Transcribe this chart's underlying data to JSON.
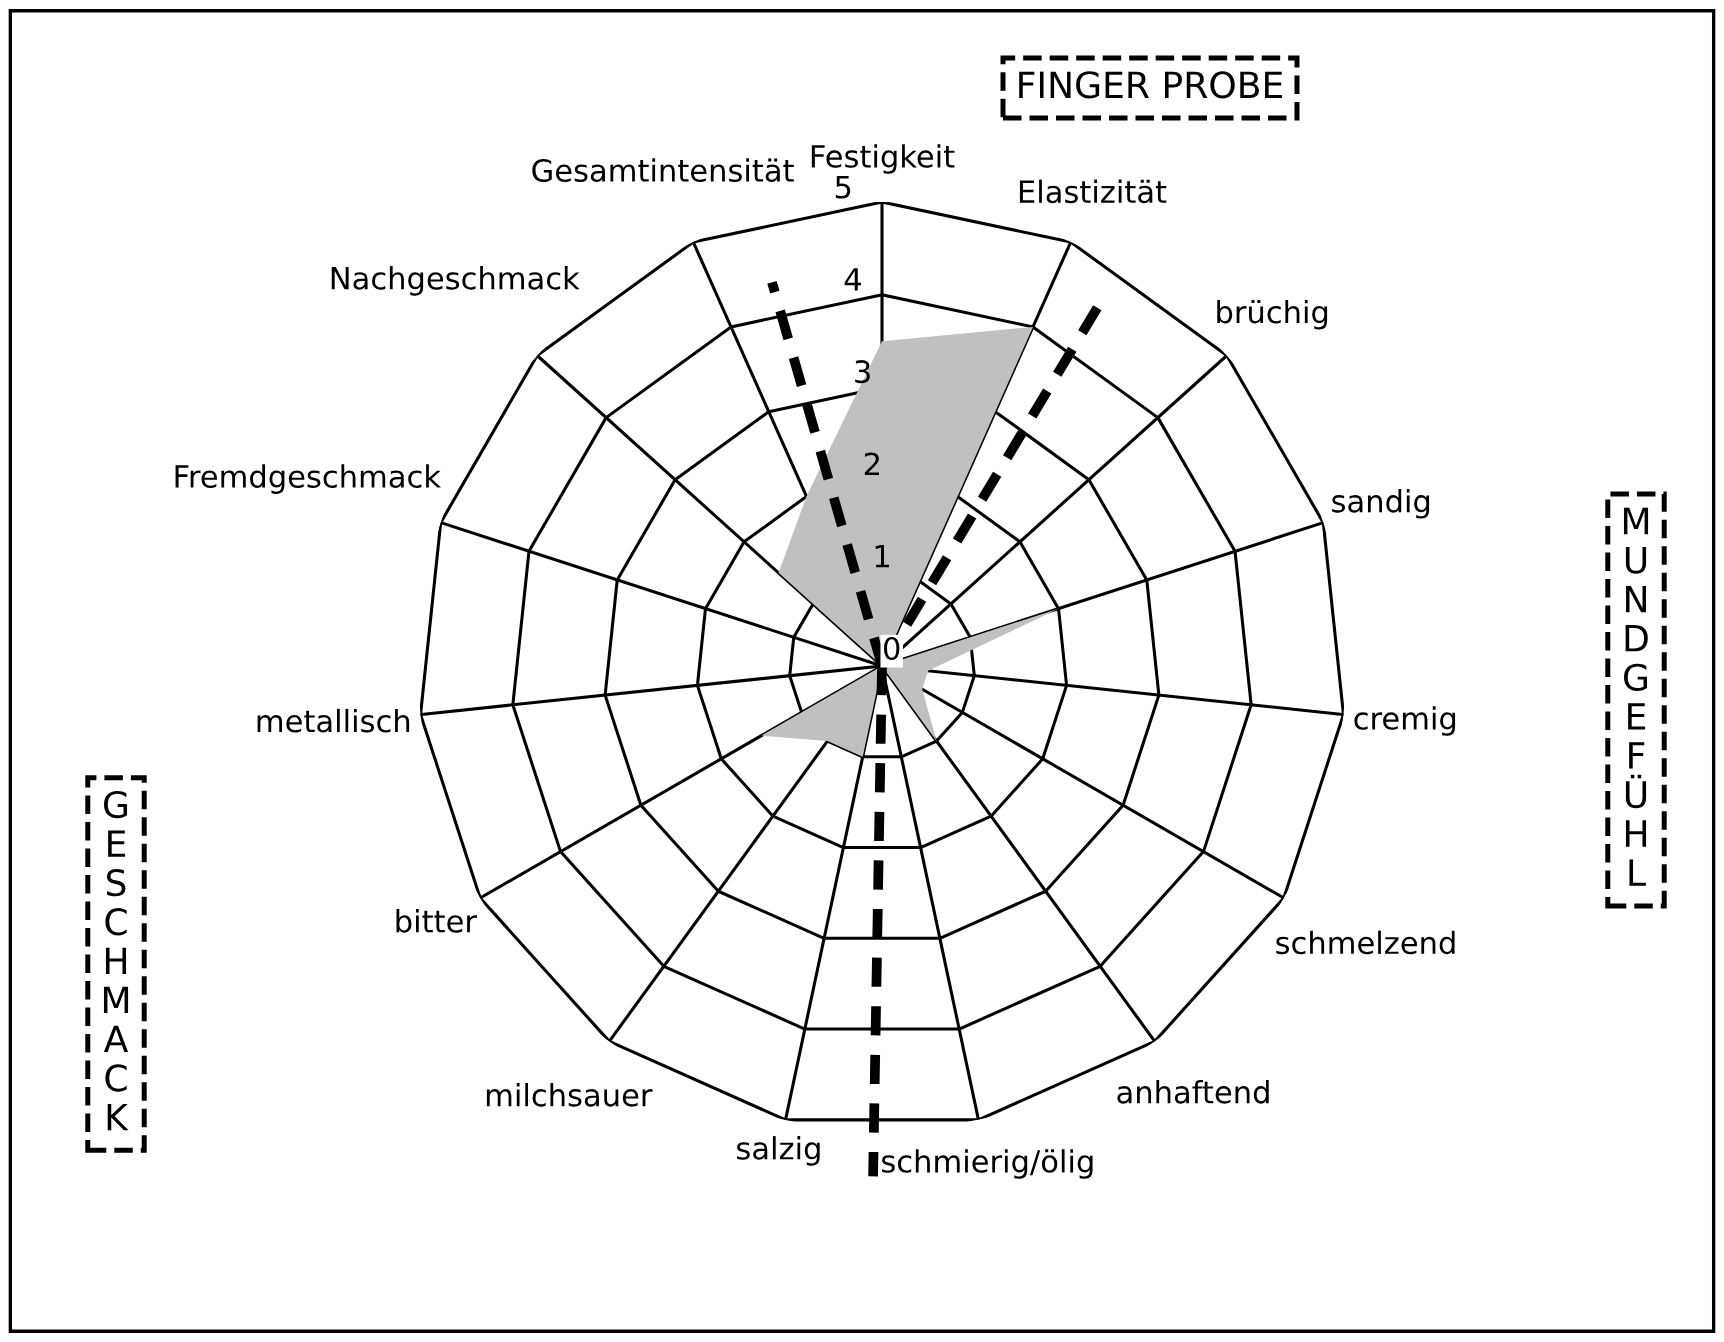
{
  "chart_data": {
    "type": "radar",
    "categories": [
      "Festigkeit",
      "Elastizität",
      "brüchig",
      "sandig",
      "cremig",
      "schmelzend",
      "anhaftend",
      "schmierig/ölig",
      "salzig",
      "milchsauer",
      "bitter",
      "metallisch",
      "Fremdgeschmack",
      "Nachgeschmack",
      "Gesamtintensität"
    ],
    "series": [
      {
        "color": "#c0c0c0",
        "values": [
          3.5,
          4,
          0,
          2,
          0.5,
          0.5,
          1,
          0,
          1,
          1,
          1.5,
          0,
          0,
          1.5,
          2
        ]
      }
    ],
    "ylim": [
      0,
      5
    ],
    "yticks": [
      0,
      1,
      2,
      3,
      4,
      5
    ],
    "grid": true,
    "annotations": [
      "FINGER PROBE",
      "MUNDGEFÜHL",
      "GESCHMACK"
    ]
  }
}
